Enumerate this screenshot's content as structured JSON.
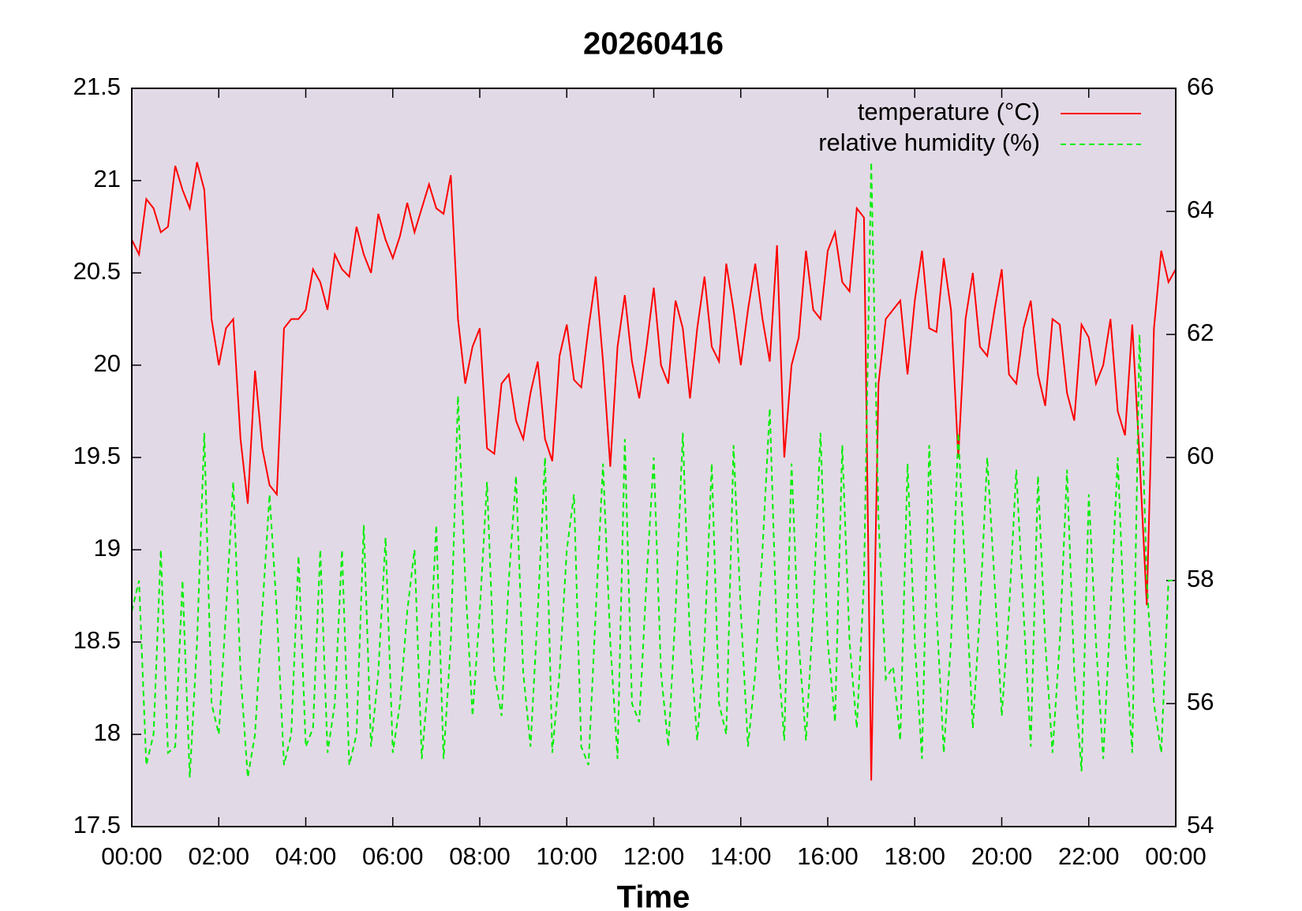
{
  "chart_data": {
    "type": "line",
    "title": "20260416",
    "xlabel": "Time",
    "x": [
      0,
      10,
      20,
      30,
      40,
      50,
      60,
      70,
      80,
      90,
      100,
      110,
      120,
      130,
      140,
      150,
      160,
      170,
      180,
      190,
      200,
      210,
      220,
      230,
      240,
      250,
      260,
      270,
      280,
      290,
      300,
      310,
      320,
      330,
      340,
      350,
      360,
      370,
      380,
      390,
      400,
      410,
      420,
      430,
      440,
      450,
      460,
      470,
      480,
      490,
      500,
      510,
      520,
      530,
      540,
      550,
      560,
      570,
      580,
      590,
      600,
      610,
      620,
      630,
      640,
      650,
      660,
      670,
      680,
      690,
      700,
      710,
      720,
      730,
      740,
      750,
      760,
      770,
      780,
      790,
      800,
      810,
      820,
      830,
      840,
      850,
      860,
      870,
      880,
      890,
      900,
      910,
      920,
      930,
      940,
      950,
      960,
      970,
      980,
      990,
      1000,
      1010,
      1020,
      1030,
      1040,
      1050,
      1060,
      1070,
      1080,
      1090,
      1100,
      1110,
      1120,
      1130,
      1140,
      1150,
      1160,
      1170,
      1180,
      1190,
      1200,
      1210,
      1220,
      1230,
      1240,
      1250,
      1260,
      1270,
      1280,
      1290,
      1300,
      1310,
      1320,
      1330,
      1340,
      1350,
      1360,
      1370,
      1380,
      1390,
      1400,
      1410,
      1420,
      1430,
      1440
    ],
    "xlim": [
      0,
      1440
    ],
    "xticks": [
      {
        "value": 0,
        "label": "00:00"
      },
      {
        "value": 120,
        "label": "02:00"
      },
      {
        "value": 240,
        "label": "04:00"
      },
      {
        "value": 360,
        "label": "06:00"
      },
      {
        "value": 480,
        "label": "08:00"
      },
      {
        "value": 600,
        "label": "10:00"
      },
      {
        "value": 720,
        "label": "12:00"
      },
      {
        "value": 840,
        "label": "14:00"
      },
      {
        "value": 960,
        "label": "16:00"
      },
      {
        "value": 1080,
        "label": "18:00"
      },
      {
        "value": 1200,
        "label": "20:00"
      },
      {
        "value": 1320,
        "label": "22:00"
      },
      {
        "value": 1440,
        "label": "00:00"
      }
    ],
    "ylim": [
      17.5,
      21.5
    ],
    "yticks": [
      17.5,
      18,
      18.5,
      19,
      19.5,
      20,
      20.5,
      21,
      21.5
    ],
    "y2lim": [
      54,
      66
    ],
    "y2ticks": [
      54,
      56,
      58,
      60,
      62,
      64,
      66
    ],
    "legend": "upper right",
    "background": "#e2d9e6",
    "series": [
      {
        "name": "temperature (°C)",
        "color": "#ff0000",
        "dash": false,
        "values": [
          20.68,
          20.6,
          20.9,
          20.85,
          20.72,
          20.75,
          21.08,
          20.95,
          20.85,
          21.1,
          20.95,
          20.25,
          20.0,
          20.2,
          20.25,
          19.6,
          19.25,
          19.97,
          19.55,
          19.35,
          19.3,
          20.2,
          20.25,
          20.25,
          20.3,
          20.52,
          20.45,
          20.3,
          20.6,
          20.52,
          20.48,
          20.75,
          20.6,
          20.5,
          20.82,
          20.68,
          20.58,
          20.7,
          20.88,
          20.72,
          20.85,
          20.98,
          20.85,
          20.82,
          21.03,
          20.25,
          19.9,
          20.1,
          20.2,
          19.55,
          19.52,
          19.9,
          19.95,
          19.7,
          19.6,
          19.85,
          20.02,
          19.6,
          19.48,
          20.05,
          20.22,
          19.92,
          19.88,
          20.2,
          20.48,
          20.02,
          19.45,
          20.1,
          20.38,
          20.02,
          19.82,
          20.1,
          20.42,
          20.0,
          19.9,
          20.35,
          20.2,
          19.82,
          20.2,
          20.48,
          20.1,
          20.02,
          20.55,
          20.3,
          20.0,
          20.3,
          20.55,
          20.25,
          20.02,
          20.65,
          19.5,
          20.0,
          20.15,
          20.62,
          20.3,
          20.25,
          20.62,
          20.72,
          20.45,
          20.4,
          20.85,
          20.8,
          17.75,
          19.9,
          20.25,
          20.3,
          20.35,
          19.95,
          20.35,
          20.62,
          20.2,
          20.18,
          20.58,
          20.3,
          19.5,
          20.25,
          20.5,
          20.1,
          20.05,
          20.3,
          20.52,
          19.95,
          19.9,
          20.2,
          20.35,
          19.95,
          19.78,
          20.25,
          20.22,
          19.85,
          19.7,
          20.22,
          20.15,
          19.9,
          20.0,
          20.25,
          19.75,
          19.62,
          20.22,
          19.5,
          18.7,
          20.2,
          20.62,
          20.45,
          20.52
        ]
      },
      {
        "name": "relative humidity (%)",
        "color": "#00ee00",
        "dash": true,
        "axis": "y2",
        "values": [
          57.5,
          58,
          55,
          55.5,
          58.5,
          55.2,
          55.3,
          58,
          54.8,
          57,
          60.4,
          56,
          55.5,
          57.5,
          59.6,
          56.5,
          54.8,
          55.5,
          57.5,
          59.4,
          57.5,
          55,
          55.5,
          58.4,
          55.3,
          55.6,
          58.5,
          55.2,
          56,
          58.5,
          55,
          55.5,
          58.9,
          55.3,
          56.5,
          58.7,
          55.2,
          56,
          57.5,
          58.5,
          55.1,
          56.5,
          58.9,
          55.1,
          57,
          61,
          58,
          55.8,
          57.5,
          59.6,
          56.5,
          55.8,
          58,
          59.7,
          56.5,
          55.3,
          57.5,
          60,
          55.2,
          56.5,
          58.5,
          59.4,
          55.3,
          55,
          57.5,
          59.9,
          57,
          55.1,
          60.3,
          56,
          55.7,
          58,
          60,
          56.5,
          55.3,
          57.5,
          60.4,
          57,
          55.4,
          57,
          59.9,
          56,
          55.5,
          60.2,
          57.5,
          55.3,
          56.5,
          58.5,
          60.8,
          57,
          55.4,
          59.9,
          57,
          55.4,
          57.5,
          60.4,
          57,
          55.7,
          60.2,
          57,
          55.6,
          58,
          64.8,
          59,
          56.4,
          56.6,
          55.4,
          59.9,
          57,
          55.1,
          60.2,
          57.5,
          55.2,
          57,
          60.4,
          58,
          55.6,
          57.5,
          60,
          58,
          55.8,
          57.5,
          59.8,
          57.5,
          55.3,
          59.7,
          57,
          55.2,
          57,
          59.8,
          56.5,
          54.9,
          59.4,
          57,
          55.1,
          57.5,
          60,
          57,
          55.2,
          62,
          58,
          56,
          55.2,
          58,
          58
        ]
      }
    ]
  }
}
